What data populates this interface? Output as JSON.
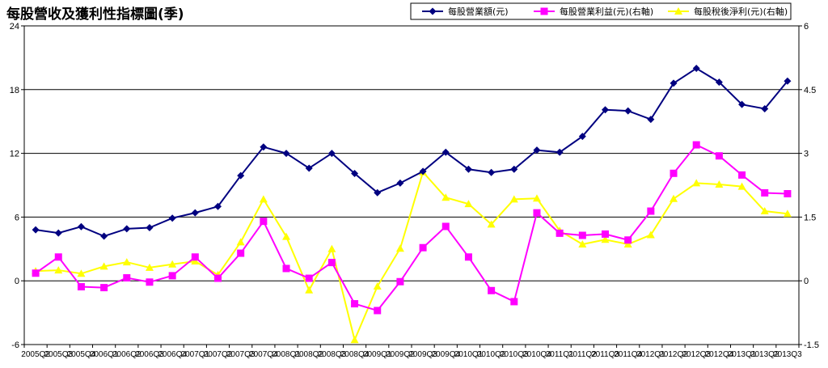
{
  "chart_data": {
    "type": "line",
    "title": "每股營收及獲利性指標圖(季)",
    "legend_position": "top-right",
    "grid": true,
    "y_left": {
      "ticks": [
        "24",
        "18",
        "12",
        "6",
        "0",
        "-6"
      ],
      "range": [
        -6,
        24
      ]
    },
    "y_right": {
      "ticks": [
        "6",
        "4.5",
        "3",
        "1.5",
        "0",
        "-1.5"
      ],
      "range": [
        -1.5,
        6
      ]
    },
    "categories": [
      "2005Q2",
      "2005Q3",
      "2005Q4",
      "2006Q1",
      "2006Q2",
      "2006Q3",
      "2006Q4",
      "2007Q1",
      "2007Q2",
      "2007Q3",
      "2007Q4",
      "2008Q1",
      "2008Q2",
      "2008Q3",
      "2008Q4",
      "2009Q1",
      "2009Q2",
      "2009Q3",
      "2009Q4",
      "2010Q1",
      "2010Q2",
      "2010Q3",
      "2010Q4",
      "2011Q1",
      "2011Q2",
      "2011Q3",
      "2011Q4",
      "2012Q1",
      "2012Q2",
      "2012Q3",
      "2012Q4",
      "2013Q1",
      "2013Q2",
      "2013Q3"
    ],
    "series": [
      {
        "name": "每股營業額(元)",
        "axis": "left",
        "color": "#000080",
        "marker": "diamond",
        "values": [
          4.8,
          4.5,
          5.1,
          4.2,
          4.9,
          5.0,
          5.9,
          6.4,
          7.0,
          9.9,
          12.6,
          12.0,
          10.6,
          12.0,
          10.1,
          8.3,
          9.2,
          10.3,
          12.1,
          10.5,
          10.2,
          10.5,
          12.3,
          12.1,
          13.6,
          16.1,
          16.0,
          15.2,
          18.6,
          20.0,
          18.7,
          16.6,
          16.2,
          18.8
        ]
      },
      {
        "name": "每股營業利益(元)(右軸)",
        "axis": "right",
        "color": "#ff00ff",
        "marker": "square",
        "values": [
          0.18,
          0.56,
          -0.14,
          -0.16,
          0.07,
          -0.03,
          0.12,
          0.56,
          0.06,
          0.65,
          1.4,
          0.29,
          0.06,
          0.43,
          -0.54,
          -0.7,
          -0.02,
          0.78,
          1.28,
          0.56,
          -0.23,
          -0.49,
          1.6,
          1.12,
          1.07,
          1.1,
          0.96,
          1.64,
          2.53,
          3.2,
          2.94,
          2.49,
          2.07,
          2.05
        ]
      },
      {
        "name": "每股稅後淨利(元)(右軸)",
        "axis": "right",
        "color": "#ffff00",
        "marker": "triangle",
        "values": [
          0.23,
          0.25,
          0.17,
          0.34,
          0.44,
          0.31,
          0.39,
          0.46,
          0.14,
          0.91,
          1.92,
          1.04,
          -0.22,
          0.75,
          -1.39,
          -0.13,
          0.76,
          2.56,
          1.96,
          1.81,
          1.33,
          1.92,
          1.94,
          1.18,
          0.86,
          0.97,
          0.86,
          1.08,
          1.93,
          2.3,
          2.27,
          2.22,
          1.64,
          1.58
        ]
      }
    ]
  }
}
